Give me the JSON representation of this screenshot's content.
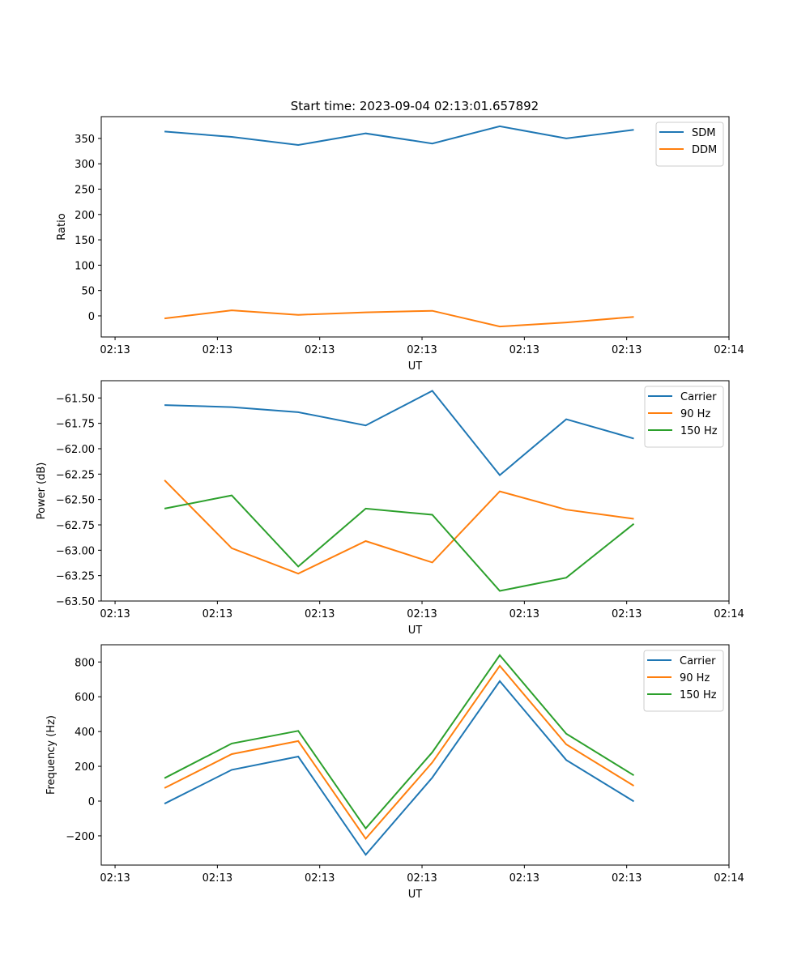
{
  "figure": {
    "title": "Start time: 2023-09-04 02:13:01.657892"
  },
  "colors": {
    "blue": "#1f77b4",
    "orange": "#ff7f0e",
    "green": "#2ca02c"
  },
  "chart_data": [
    {
      "type": "line",
      "title": "Start time: 2023-09-04 02:13:01.657892",
      "xlabel": "UT",
      "ylabel": "Ratio",
      "x_tick_labels": [
        "02:13",
        "02:13",
        "02:13",
        "02:13",
        "02:13",
        "02:13",
        "02:14"
      ],
      "x_tick_positions": [
        0,
        1,
        2,
        3,
        4,
        5,
        6
      ],
      "xlim": [
        -0.135,
        6
      ],
      "x": [
        0.483,
        1.14,
        1.79,
        2.45,
        3.1,
        3.76,
        4.41,
        5.07
      ],
      "ylim": [
        -41.6,
        393
      ],
      "y_ticks": [
        0,
        50,
        100,
        150,
        200,
        250,
        300,
        350
      ],
      "y_tick_labels": [
        "0",
        "50",
        "100",
        "150",
        "200",
        "250",
        "300",
        "350"
      ],
      "grid": false,
      "legend_position": "top-right",
      "series": [
        {
          "name": "SDM",
          "color": "#1f77b4",
          "values": [
            363.6,
            353,
            337,
            360,
            340,
            374,
            350,
            367
          ]
        },
        {
          "name": "DDM",
          "color": "#ff7f0e",
          "values": [
            -5,
            11,
            2,
            7,
            10,
            -21,
            -13,
            -2
          ]
        }
      ]
    },
    {
      "type": "line",
      "title": "",
      "xlabel": "UT",
      "ylabel": "Power (dB)",
      "x_tick_labels": [
        "02:13",
        "02:13",
        "02:13",
        "02:13",
        "02:13",
        "02:13",
        "02:14"
      ],
      "x_tick_positions": [
        0,
        1,
        2,
        3,
        4,
        5,
        6
      ],
      "xlim": [
        -0.135,
        6
      ],
      "x": [
        0.483,
        1.14,
        1.79,
        2.45,
        3.1,
        3.76,
        4.41,
        5.07
      ],
      "ylim": [
        -63.5,
        -61.33
      ],
      "y_ticks": [
        -63.5,
        -63.25,
        -63.0,
        -62.75,
        -62.5,
        -62.25,
        -62.0,
        -61.75,
        -61.5
      ],
      "y_tick_labels": [
        "−63.50",
        "−63.25",
        "−63.00",
        "−62.75",
        "−62.50",
        "−62.25",
        "−62.00",
        "−61.75",
        "−61.50"
      ],
      "grid": false,
      "legend_position": "top-right",
      "series": [
        {
          "name": "Carrier",
          "color": "#1f77b4",
          "values": [
            -61.57,
            -61.59,
            -61.64,
            -61.77,
            -61.43,
            -62.26,
            -61.71,
            -61.9
          ]
        },
        {
          "name": "90 Hz",
          "color": "#ff7f0e",
          "values": [
            -62.31,
            -62.98,
            -63.23,
            -62.91,
            -63.12,
            -62.42,
            -62.6,
            -62.69
          ]
        },
        {
          "name": "150 Hz",
          "color": "#2ca02c",
          "values": [
            -62.59,
            -62.46,
            -63.16,
            -62.59,
            -62.65,
            -63.4,
            -63.27,
            -62.74
          ]
        }
      ]
    },
    {
      "type": "line",
      "title": "",
      "xlabel": "UT",
      "ylabel": "Frequency (Hz)",
      "x_tick_labels": [
        "02:13",
        "02:13",
        "02:13",
        "02:13",
        "02:13",
        "02:13",
        "02:14"
      ],
      "x_tick_positions": [
        0,
        1,
        2,
        3,
        4,
        5,
        6
      ],
      "xlim": [
        -0.135,
        6
      ],
      "x": [
        0.483,
        1.14,
        1.79,
        2.45,
        3.1,
        3.76,
        4.41,
        5.07
      ],
      "ylim": [
        -368,
        899
      ],
      "y_ticks": [
        -200,
        0,
        200,
        400,
        600,
        800
      ],
      "y_tick_labels": [
        "−200",
        "0",
        "200",
        "400",
        "600",
        "800"
      ],
      "grid": false,
      "legend_position": "top-right",
      "series": [
        {
          "name": "Carrier",
          "color": "#1f77b4",
          "values": [
            -15,
            180,
            256,
            -309,
            135,
            690,
            236,
            -2
          ]
        },
        {
          "name": "90 Hz",
          "color": "#ff7f0e",
          "values": [
            75,
            270,
            345,
            -216,
            222,
            778,
            326,
            88
          ]
        },
        {
          "name": "150 Hz",
          "color": "#2ca02c",
          "values": [
            132,
            331,
            404,
            -157,
            281,
            839,
            387,
            148
          ]
        }
      ]
    }
  ]
}
